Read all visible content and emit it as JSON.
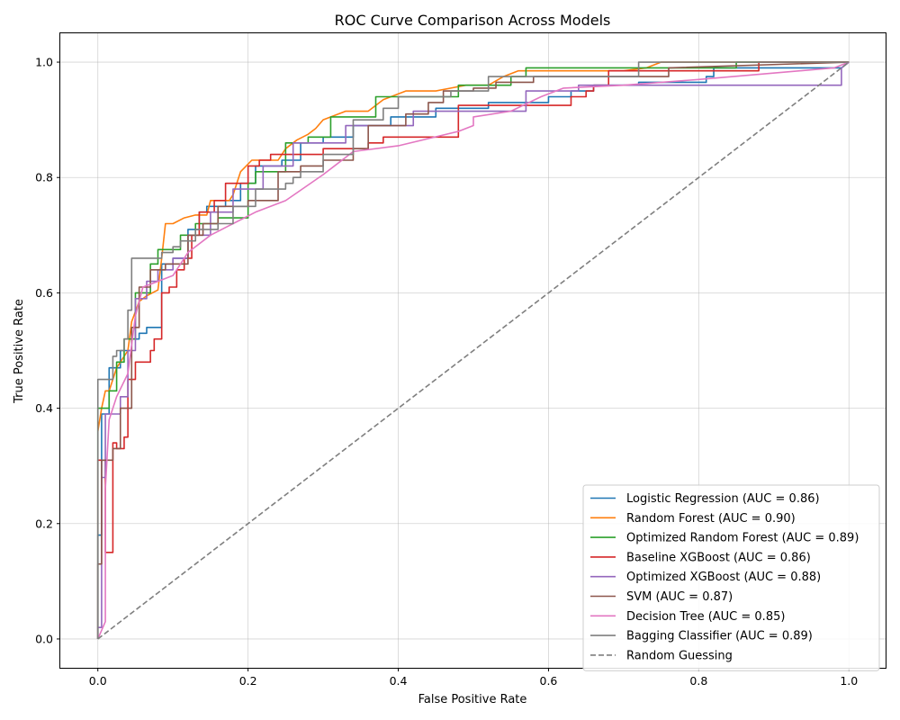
{
  "chart_data": {
    "type": "line",
    "title": "ROC Curve Comparison Across Models",
    "xlabel": "False Positive Rate",
    "ylabel": "True Positive Rate",
    "xlim": [
      -0.05,
      1.05
    ],
    "ylim": [
      -0.05,
      1.05
    ],
    "xticks": [
      "0.0",
      "0.2",
      "0.4",
      "0.6",
      "0.8",
      "1.0"
    ],
    "yticks": [
      "0.0",
      "0.2",
      "0.4",
      "0.6",
      "0.8",
      "1.0"
    ],
    "grid": true,
    "legend_position": "lower-right",
    "series": [
      {
        "name": "Logistic Regression (AUC = 0.86)",
        "color": "#1f77b4",
        "dashed": false,
        "x": [
          0,
          0,
          0.005,
          0.005,
          0.015,
          0.015,
          0.03,
          0.03,
          0.045,
          0.045,
          0.055,
          0.055,
          0.065,
          0.065,
          0.07,
          0.07,
          0.085,
          0.085,
          0.1,
          0.1,
          0.12,
          0.12,
          0.135,
          0.135,
          0.145,
          0.145,
          0.17,
          0.17,
          0.19,
          0.19,
          0.21,
          0.21,
          0.245,
          0.245,
          0.27,
          0.27,
          0.3,
          0.3,
          0.34,
          0.34,
          0.39,
          0.39,
          0.45,
          0.45,
          0.52,
          0.52,
          0.6,
          0.6,
          0.63,
          0.63,
          0.66,
          0.66,
          0.72,
          0.72,
          0.81,
          0.81,
          0.82,
          0.82,
          0.99,
          1
        ],
        "y": [
          0,
          0.18,
          0.18,
          0.39,
          0.39,
          0.47,
          0.47,
          0.5,
          0.5,
          0.52,
          0.52,
          0.53,
          0.53,
          0.54,
          0.54,
          0.54,
          0.54,
          0.65,
          0.65,
          0.66,
          0.66,
          0.71,
          0.71,
          0.74,
          0.74,
          0.75,
          0.75,
          0.76,
          0.76,
          0.79,
          0.79,
          0.82,
          0.82,
          0.83,
          0.83,
          0.86,
          0.86,
          0.87,
          0.87,
          0.89,
          0.89,
          0.905,
          0.905,
          0.92,
          0.92,
          0.93,
          0.93,
          0.94,
          0.94,
          0.95,
          0.95,
          0.96,
          0.96,
          0.965,
          0.965,
          0.975,
          0.975,
          0.99,
          0.99,
          1
        ]
      },
      {
        "name": "Random Forest (AUC = 0.90)",
        "color": "#ff7f0e",
        "dashed": false,
        "x": [
          0,
          0.005,
          0.01,
          0.015,
          0.025,
          0.03,
          0.04,
          0.045,
          0.055,
          0.065,
          0.08,
          0.085,
          0.09,
          0.1,
          0.115,
          0.13,
          0.145,
          0.15,
          0.175,
          0.18,
          0.19,
          0.205,
          0.23,
          0.24,
          0.25,
          0.265,
          0.28,
          0.29,
          0.3,
          0.33,
          0.36,
          0.38,
          0.41,
          0.45,
          0.47,
          0.49,
          0.52,
          0.54,
          0.56,
          0.6,
          0.7,
          0.73,
          0.75,
          0.8,
          1
        ],
        "y": [
          0.36,
          0.4,
          0.43,
          0.43,
          0.47,
          0.48,
          0.5,
          0.55,
          0.585,
          0.595,
          0.605,
          0.66,
          0.72,
          0.72,
          0.73,
          0.735,
          0.735,
          0.76,
          0.76,
          0.77,
          0.81,
          0.83,
          0.83,
          0.83,
          0.85,
          0.865,
          0.875,
          0.885,
          0.9,
          0.915,
          0.915,
          0.935,
          0.95,
          0.95,
          0.955,
          0.96,
          0.96,
          0.975,
          0.985,
          0.985,
          0.985,
          0.99,
          1,
          1,
          1
        ]
      },
      {
        "name": "Optimized Random Forest (AUC = 0.89)",
        "color": "#2ca02c",
        "dashed": false,
        "x": [
          0,
          0,
          0.015,
          0.015,
          0.025,
          0.025,
          0.035,
          0.035,
          0.05,
          0.05,
          0.07,
          0.07,
          0.08,
          0.08,
          0.11,
          0.11,
          0.13,
          0.13,
          0.16,
          0.16,
          0.2,
          0.2,
          0.21,
          0.21,
          0.25,
          0.25,
          0.28,
          0.28,
          0.31,
          0.31,
          0.37,
          0.37,
          0.48,
          0.48,
          0.55,
          0.55,
          0.57,
          0.57,
          0.85,
          0.85,
          1
        ],
        "y": [
          0,
          0.4,
          0.4,
          0.43,
          0.43,
          0.48,
          0.48,
          0.52,
          0.52,
          0.6,
          0.6,
          0.65,
          0.65,
          0.675,
          0.675,
          0.7,
          0.7,
          0.72,
          0.72,
          0.73,
          0.73,
          0.79,
          0.79,
          0.81,
          0.81,
          0.86,
          0.86,
          0.87,
          0.87,
          0.905,
          0.905,
          0.94,
          0.94,
          0.96,
          0.96,
          0.975,
          0.975,
          0.99,
          0.99,
          1,
          1
        ]
      },
      {
        "name": "Baseline XGBoost (AUC = 0.86)",
        "color": "#d62728",
        "dashed": false,
        "x": [
          0,
          0,
          0.01,
          0.01,
          0.02,
          0.02,
          0.025,
          0.025,
          0.035,
          0.035,
          0.04,
          0.04,
          0.05,
          0.05,
          0.07,
          0.07,
          0.075,
          0.075,
          0.085,
          0.085,
          0.095,
          0.095,
          0.105,
          0.105,
          0.115,
          0.115,
          0.125,
          0.125,
          0.135,
          0.135,
          0.155,
          0.155,
          0.17,
          0.17,
          0.2,
          0.2,
          0.215,
          0.215,
          0.23,
          0.23,
          0.25,
          0.25,
          0.3,
          0.3,
          0.36,
          0.36,
          0.38,
          0.38,
          0.48,
          0.48,
          0.5,
          0.5,
          0.6,
          0.6,
          0.63,
          0.63,
          0.65,
          0.65,
          0.66,
          0.66,
          0.68,
          0.68,
          0.8,
          0.8,
          0.88,
          0.88,
          1
        ],
        "y": [
          0,
          0.31,
          0.31,
          0.15,
          0.15,
          0.34,
          0.34,
          0.33,
          0.33,
          0.35,
          0.35,
          0.45,
          0.45,
          0.48,
          0.48,
          0.5,
          0.5,
          0.52,
          0.52,
          0.6,
          0.6,
          0.61,
          0.61,
          0.64,
          0.64,
          0.66,
          0.66,
          0.7,
          0.7,
          0.74,
          0.74,
          0.76,
          0.76,
          0.79,
          0.79,
          0.82,
          0.82,
          0.83,
          0.83,
          0.84,
          0.84,
          0.84,
          0.84,
          0.85,
          0.85,
          0.86,
          0.86,
          0.87,
          0.87,
          0.925,
          0.925,
          0.925,
          0.925,
          0.925,
          0.925,
          0.94,
          0.94,
          0.95,
          0.95,
          0.96,
          0.96,
          0.985,
          0.985,
          0.985,
          0.985,
          1,
          1
        ]
      },
      {
        "name": "Optimized XGBoost (AUC = 0.88)",
        "color": "#9467bd",
        "dashed": false,
        "x": [
          0,
          0,
          0.005,
          0.005,
          0.01,
          0.01,
          0.02,
          0.02,
          0.03,
          0.03,
          0.04,
          0.04,
          0.05,
          0.05,
          0.065,
          0.065,
          0.08,
          0.08,
          0.1,
          0.1,
          0.12,
          0.12,
          0.15,
          0.15,
          0.18,
          0.18,
          0.22,
          0.22,
          0.26,
          0.26,
          0.33,
          0.33,
          0.42,
          0.42,
          0.57,
          0.57,
          0.64,
          0.64,
          0.99,
          0.99,
          1
        ],
        "y": [
          0,
          0.02,
          0.02,
          0.28,
          0.28,
          0.39,
          0.39,
          0.39,
          0.39,
          0.42,
          0.42,
          0.5,
          0.5,
          0.59,
          0.59,
          0.62,
          0.62,
          0.64,
          0.64,
          0.66,
          0.66,
          0.7,
          0.7,
          0.74,
          0.74,
          0.78,
          0.78,
          0.82,
          0.82,
          0.86,
          0.86,
          0.89,
          0.89,
          0.915,
          0.915,
          0.95,
          0.95,
          0.96,
          0.96,
          0.99,
          1
        ]
      },
      {
        "name": "SVM (AUC = 0.87)",
        "color": "#8c564b",
        "dashed": false,
        "x": [
          0,
          0,
          0.005,
          0.005,
          0.02,
          0.02,
          0.03,
          0.03,
          0.045,
          0.045,
          0.055,
          0.055,
          0.07,
          0.07,
          0.09,
          0.09,
          0.12,
          0.12,
          0.14,
          0.14,
          0.16,
          0.16,
          0.2,
          0.2,
          0.24,
          0.24,
          0.27,
          0.27,
          0.3,
          0.3,
          0.34,
          0.34,
          0.36,
          0.36,
          0.41,
          0.41,
          0.44,
          0.44,
          0.46,
          0.46,
          0.5,
          0.5,
          0.53,
          0.53,
          0.58,
          0.58,
          0.76,
          0.76,
          1
        ],
        "y": [
          0,
          0.13,
          0.13,
          0.31,
          0.31,
          0.33,
          0.33,
          0.4,
          0.4,
          0.54,
          0.54,
          0.61,
          0.61,
          0.64,
          0.64,
          0.65,
          0.65,
          0.7,
          0.7,
          0.72,
          0.72,
          0.75,
          0.75,
          0.76,
          0.76,
          0.81,
          0.81,
          0.82,
          0.82,
          0.83,
          0.83,
          0.85,
          0.85,
          0.89,
          0.89,
          0.91,
          0.91,
          0.93,
          0.93,
          0.95,
          0.95,
          0.955,
          0.955,
          0.965,
          0.965,
          0.975,
          0.975,
          0.99,
          1
        ]
      },
      {
        "name": "Decision Tree (AUC = 0.85)",
        "color": "#e377c2",
        "dashed": false,
        "x": [
          0,
          0.01,
          0.01,
          0.015,
          0.025,
          0.04,
          0.05,
          0.06,
          0.08,
          0.1,
          0.12,
          0.15,
          0.18,
          0.21,
          0.25,
          0.3,
          0.34,
          0.4,
          0.48,
          0.5,
          0.5,
          0.55,
          0.59,
          0.62,
          0.7,
          0.8,
          0.98,
          1
        ],
        "y": [
          0,
          0.03,
          0.26,
          0.38,
          0.42,
          0.46,
          0.56,
          0.61,
          0.62,
          0.63,
          0.67,
          0.7,
          0.72,
          0.74,
          0.76,
          0.805,
          0.845,
          0.855,
          0.88,
          0.89,
          0.905,
          0.915,
          0.94,
          0.955,
          0.96,
          0.97,
          0.99,
          1
        ]
      },
      {
        "name": "Bagging Classifier (AUC = 0.89)",
        "color": "#7f7f7f",
        "dashed": false,
        "x": [
          0,
          0,
          0.02,
          0.02,
          0.025,
          0.025,
          0.035,
          0.035,
          0.04,
          0.04,
          0.045,
          0.045,
          0.085,
          0.085,
          0.1,
          0.1,
          0.11,
          0.11,
          0.13,
          0.13,
          0.16,
          0.16,
          0.18,
          0.18,
          0.21,
          0.21,
          0.25,
          0.25,
          0.26,
          0.26,
          0.27,
          0.27,
          0.3,
          0.3,
          0.34,
          0.34,
          0.38,
          0.38,
          0.4,
          0.4,
          0.47,
          0.47,
          0.52,
          0.52,
          0.72,
          0.72,
          1
        ],
        "y": [
          0,
          0.45,
          0.45,
          0.49,
          0.49,
          0.5,
          0.5,
          0.52,
          0.52,
          0.57,
          0.57,
          0.66,
          0.66,
          0.67,
          0.67,
          0.68,
          0.68,
          0.69,
          0.69,
          0.71,
          0.71,
          0.72,
          0.72,
          0.75,
          0.75,
          0.78,
          0.78,
          0.79,
          0.79,
          0.8,
          0.8,
          0.81,
          0.81,
          0.84,
          0.84,
          0.9,
          0.9,
          0.92,
          0.92,
          0.94,
          0.94,
          0.95,
          0.95,
          0.975,
          0.975,
          1,
          1
        ]
      },
      {
        "name": "Random Guessing",
        "color": "#7f7f7f",
        "dashed": true,
        "x": [
          0,
          1
        ],
        "y": [
          0,
          1
        ]
      }
    ]
  }
}
